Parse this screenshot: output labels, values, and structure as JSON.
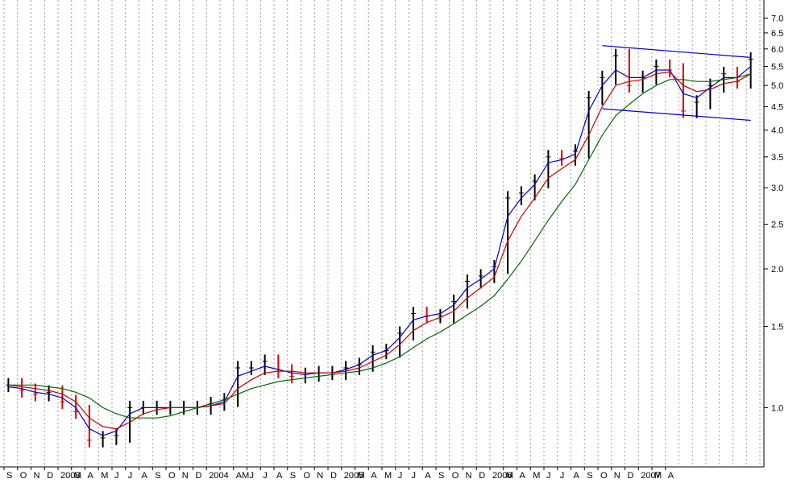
{
  "chart_data": {
    "type": "line",
    "y_scale": "log",
    "ylim": [
      0.75,
      7.6
    ],
    "grid": "vertical dotted",
    "y_ticks": [
      {
        "value": 7.0,
        "label": "7.0"
      },
      {
        "value": 6.5,
        "label": "6.5"
      },
      {
        "value": 6.0,
        "label": "6.0"
      },
      {
        "value": 5.5,
        "label": "5.5"
      },
      {
        "value": 5.0,
        "label": "5.0"
      },
      {
        "value": 4.5,
        "label": "4.5"
      },
      {
        "value": 4.0,
        "label": "4.0"
      },
      {
        "value": 3.5,
        "label": "3.5"
      },
      {
        "value": 3.0,
        "label": "3.0"
      },
      {
        "value": 2.5,
        "label": "2.5"
      },
      {
        "value": 2.0,
        "label": "2.0"
      },
      {
        "value": 1.5,
        "label": "1.5"
      },
      {
        "value": 1.0,
        "label": "1.0"
      }
    ],
    "x_labels": [
      "S",
      "O",
      "N",
      "D",
      "2003",
      "M",
      "A",
      "M",
      "J",
      "J",
      "A",
      "S",
      "O",
      "N",
      "D",
      "2004",
      "",
      "AM",
      "J",
      "J",
      "A",
      "S",
      "O",
      "N",
      "D",
      "2005",
      "M",
      "A",
      "M",
      "J",
      "J",
      "A",
      "S",
      "O",
      "N",
      "D",
      "2006",
      "M",
      "A",
      "M",
      "J",
      "J",
      "A",
      "S",
      "O",
      "N",
      "D",
      "2007",
      "M",
      "A"
    ],
    "months": [
      "2002-09",
      "2002-10",
      "2002-11",
      "2002-12",
      "2003-01",
      "2003-02",
      "2003-03",
      "2003-04",
      "2003-05",
      "2003-06",
      "2003-07",
      "2003-08",
      "2003-09",
      "2003-10",
      "2003-11",
      "2003-12",
      "2004-01",
      "2004-02",
      "2004-03",
      "2004-04",
      "2004-05",
      "2004-06",
      "2004-07",
      "2004-08",
      "2004-09",
      "2004-10",
      "2004-11",
      "2004-12",
      "2005-01",
      "2005-02",
      "2005-03",
      "2005-04",
      "2005-05",
      "2005-06",
      "2005-07",
      "2005-08",
      "2005-09",
      "2005-10",
      "2005-11",
      "2005-12",
      "2006-01",
      "2006-02",
      "2006-03",
      "2006-04",
      "2006-05",
      "2006-06",
      "2006-07",
      "2006-08",
      "2006-09",
      "2006-10",
      "2006-11",
      "2006-12",
      "2007-01",
      "2007-02",
      "2007-03",
      "2007-04"
    ],
    "series": [
      {
        "color": "#000000",
        "style": "price-bars",
        "values": [
          1.12,
          1.09,
          1.07,
          1.08,
          1.03,
          0.98,
          0.85,
          0.86,
          0.87,
          1.0,
          1.0,
          1.0,
          1.0,
          1.0,
          1.0,
          1.02,
          1.04,
          1.22,
          1.22,
          1.26,
          1.2,
          1.17,
          1.18,
          1.19,
          1.19,
          1.22,
          1.24,
          1.32,
          1.33,
          1.45,
          1.6,
          1.58,
          1.58,
          1.7,
          1.88,
          1.93,
          2.02,
          2.85,
          2.92,
          3.1,
          3.5,
          3.47,
          3.6,
          4.7,
          5.2,
          5.8,
          5.0,
          5.2,
          5.5,
          5.4,
          4.4,
          4.6,
          5.0,
          5.3,
          5.1,
          5.7
        ]
      },
      {
        "color": "#0000cc",
        "style": "line",
        "values": [
          1.11,
          1.1,
          1.08,
          1.07,
          1.05,
          1.0,
          0.9,
          0.87,
          0.89,
          0.97,
          1.0,
          1.0,
          1.0,
          1.0,
          1.0,
          1.01,
          1.03,
          1.17,
          1.2,
          1.23,
          1.21,
          1.19,
          1.18,
          1.19,
          1.19,
          1.21,
          1.24,
          1.3,
          1.33,
          1.42,
          1.55,
          1.58,
          1.6,
          1.67,
          1.82,
          1.9,
          2.0,
          2.6,
          2.85,
          3.05,
          3.4,
          3.45,
          3.55,
          4.4,
          5.0,
          5.4,
          5.2,
          5.2,
          5.4,
          5.4,
          4.8,
          4.7,
          4.95,
          5.2,
          5.2,
          5.5
        ]
      },
      {
        "color": "#cc0000",
        "style": "line",
        "values": [
          1.12,
          1.11,
          1.1,
          1.09,
          1.07,
          1.03,
          0.95,
          0.91,
          0.9,
          0.93,
          0.97,
          0.99,
          1.0,
          1.0,
          1.0,
          1.01,
          1.02,
          1.1,
          1.15,
          1.19,
          1.2,
          1.2,
          1.19,
          1.19,
          1.19,
          1.2,
          1.22,
          1.26,
          1.3,
          1.37,
          1.47,
          1.53,
          1.57,
          1.62,
          1.73,
          1.82,
          1.92,
          2.3,
          2.6,
          2.85,
          3.15,
          3.3,
          3.45,
          3.9,
          4.5,
          5.0,
          5.1,
          5.15,
          5.3,
          5.35,
          5.0,
          4.85,
          4.9,
          5.05,
          5.1,
          5.3
        ]
      },
      {
        "color": "#006600",
        "style": "line",
        "values": [
          1.12,
          1.12,
          1.12,
          1.11,
          1.1,
          1.08,
          1.05,
          1.0,
          0.97,
          0.95,
          0.95,
          0.95,
          0.96,
          0.98,
          1.0,
          1.02,
          1.04,
          1.07,
          1.1,
          1.12,
          1.14,
          1.15,
          1.16,
          1.17,
          1.18,
          1.19,
          1.2,
          1.22,
          1.25,
          1.29,
          1.35,
          1.41,
          1.46,
          1.52,
          1.59,
          1.66,
          1.75,
          1.9,
          2.08,
          2.3,
          2.55,
          2.8,
          3.05,
          3.45,
          3.9,
          4.3,
          4.55,
          4.8,
          5.0,
          5.15,
          5.15,
          5.1,
          5.1,
          5.15,
          5.2,
          5.3
        ]
      }
    ],
    "trendlines": [
      {
        "color": "#0000cc",
        "from": {
          "x": "2006-05",
          "y": 6.1
        },
        "to": {
          "x": "2007-04",
          "y": 5.75
        }
      },
      {
        "color": "#0000cc",
        "from": {
          "x": "2006-05",
          "y": 4.45
        },
        "to": {
          "x": "2007-04",
          "y": 4.2
        }
      }
    ]
  }
}
